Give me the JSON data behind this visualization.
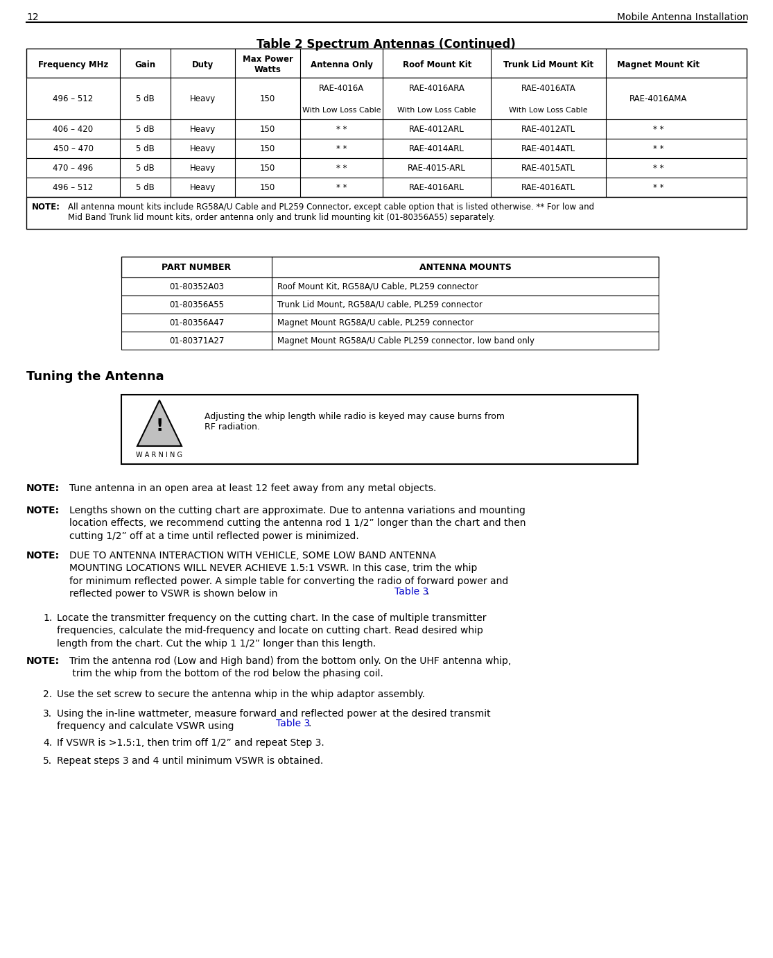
{
  "page_number": "12",
  "page_header_right": "Mobile Antenna Installation",
  "table1_title": "Table 2 Spectrum Antennas (Continued)",
  "table1_headers": [
    "Frequency MHz",
    "Gain",
    "Duty",
    "Max Power\nWatts",
    "Antenna Only",
    "Roof Mount Kit",
    "Trunk Lid Mount Kit",
    "Magnet Mount Kit"
  ],
  "table2_headers": [
    "PART NUMBER",
    "ANTENNA MOUNTS"
  ],
  "table2_rows": [
    [
      "01-80352A03",
      "Roof Mount Kit, RG58A/U Cable, PL259 connector"
    ],
    [
      "01-80356A55",
      "Trunk Lid Mount, RG58A/U cable, PL259 connector"
    ],
    [
      "01-80356A47",
      "Magnet Mount RG58A/U cable, PL259 connector"
    ],
    [
      "01-80371A27",
      "Magnet Mount RG58A/U Cable PL259 connector, low band only"
    ]
  ],
  "tuning_header": "Tuning the Antenna",
  "warning_text": "Adjusting the whip length while radio is keyed may cause burns from\nRF radiation.",
  "warning_label": "WARNING",
  "bg_color": "#ffffff",
  "text_color": "#000000"
}
